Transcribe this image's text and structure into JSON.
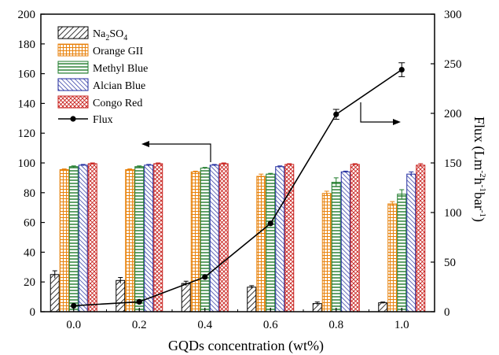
{
  "chart_data": {
    "type": "bar",
    "xlabel": "GQDs concentration (wt%)",
    "ylabel_right": "Flux (Lm⁻²h⁻¹bar⁻¹)",
    "ylabel_right_parts": [
      "Flux (Lm",
      "-2",
      "h",
      "-1",
      "bar",
      "-1",
      ")"
    ],
    "categories": [
      "0.0",
      "0.2",
      "0.4",
      "0.6",
      "0.8",
      "1.0"
    ],
    "x": [
      0.0,
      0.2,
      0.4,
      0.6,
      0.8,
      1.0
    ],
    "xlim": [
      -0.1,
      1.1
    ],
    "ylim_left": [
      0,
      200
    ],
    "ylim_right": [
      0,
      300
    ],
    "yticks_left": [
      0,
      20,
      40,
      60,
      80,
      100,
      120,
      140,
      160,
      180,
      200
    ],
    "yticks_right": [
      0,
      50,
      100,
      150,
      200,
      250,
      300
    ],
    "series": [
      {
        "name": "Na₂SO₄",
        "name_parts": [
          "Na",
          "2",
          "SO",
          "4"
        ],
        "pattern": "diag",
        "color": "#000000",
        "values": [
          25,
          21,
          19,
          16.5,
          5.5,
          6
        ],
        "errors": [
          2.5,
          2,
          1.5,
          1,
          1,
          0.5
        ]
      },
      {
        "name": "Orange GII",
        "pattern": "grid",
        "color": "#e8820c",
        "values": [
          95.5,
          95.5,
          94,
          91,
          79.5,
          72.5
        ],
        "errors": [
          0.5,
          0.5,
          0.5,
          1.5,
          1.5,
          1.5
        ]
      },
      {
        "name": "Methyl Blue",
        "pattern": "hlines",
        "color": "#1e7b2a",
        "values": [
          97.5,
          97.5,
          96.5,
          92.5,
          87,
          79
        ],
        "errors": [
          0.5,
          0.5,
          0.5,
          0.5,
          3,
          3
        ]
      },
      {
        "name": "Alcian Blue",
        "pattern": "diag-rev",
        "color": "#1f2a9e",
        "values": [
          98.5,
          98.5,
          98.5,
          97.5,
          94,
          92.5
        ],
        "errors": [
          0.5,
          0.5,
          0.5,
          0.5,
          0.5,
          1.5
        ]
      },
      {
        "name": "Congo Red",
        "pattern": "cross",
        "color": "#c8201c",
        "values": [
          99.5,
          99.5,
          99.5,
          99,
          99,
          98.5
        ],
        "errors": [
          0.5,
          0.5,
          0.5,
          0.5,
          0.5,
          1
        ]
      }
    ],
    "line_series": {
      "name": "Flux",
      "axis": "right",
      "x": [
        0.0,
        0.2,
        0.4,
        0.6,
        0.8,
        1.0
      ],
      "values": [
        6,
        10,
        35,
        89,
        199,
        244
      ],
      "errors": [
        0,
        0,
        0,
        0,
        5,
        7
      ]
    },
    "legend_position": "top-left",
    "grid": false,
    "annotations": [
      {
        "type": "arrow",
        "direction": "left",
        "meaning": "bars read on left axis"
      },
      {
        "type": "arrow",
        "direction": "right",
        "meaning": "flux line read on right axis"
      }
    ]
  }
}
